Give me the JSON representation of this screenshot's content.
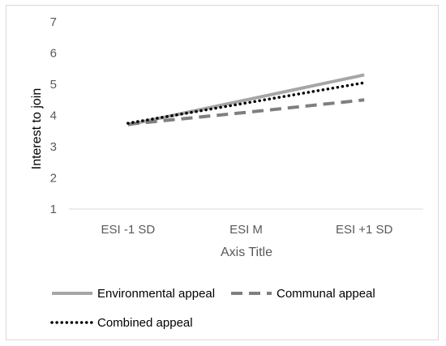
{
  "chart_data": {
    "type": "line",
    "title": "",
    "xlabel": "Axis Title",
    "ylabel": "Interest to join",
    "categories": [
      "ESI -1 SD",
      "ESI M",
      "ESI +1 SD"
    ],
    "ylim": [
      1,
      7
    ],
    "yticks": [
      "1",
      "2",
      "3",
      "4",
      "5",
      "6",
      "7"
    ],
    "grid": false,
    "legend_position": "bottom",
    "series": [
      {
        "name": "Environmental appeal",
        "values": [
          3.7,
          4.5,
          5.3
        ],
        "color": "#a6a6a6",
        "dash": "solid"
      },
      {
        "name": "Communal appeal",
        "values": [
          3.72,
          4.1,
          4.5
        ],
        "color": "#7f7f7f",
        "dash": "dashed"
      },
      {
        "name": "Combined appeal",
        "values": [
          3.75,
          4.4,
          5.05
        ],
        "color": "#000000",
        "dash": "dotted"
      }
    ]
  }
}
